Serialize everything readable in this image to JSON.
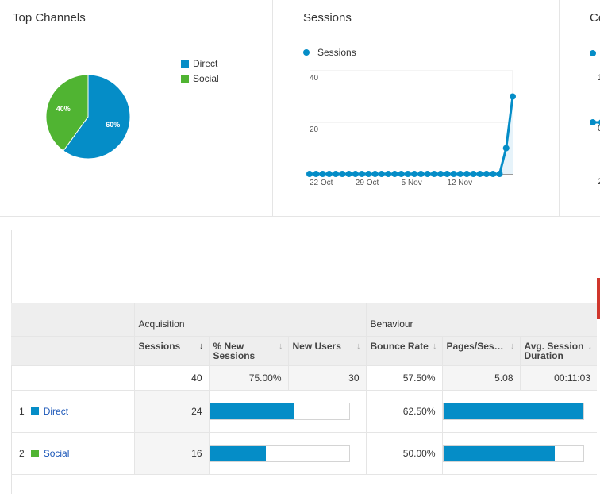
{
  "channels_card": {
    "title": "Top Channels",
    "legend": [
      {
        "label": "Direct",
        "color": "#058dc7"
      },
      {
        "label": "Social",
        "color": "#50b432"
      }
    ]
  },
  "chart_data": [
    {
      "type": "pie",
      "title": "Top Channels",
      "labels": [
        "Direct",
        "Social"
      ],
      "values": [
        60,
        40
      ],
      "colors": [
        "#058dc7",
        "#50b432"
      ],
      "value_labels": [
        "60%",
        "40%"
      ]
    },
    {
      "type": "line",
      "title": "Sessions",
      "series": [
        {
          "name": "Sessions",
          "color": "#058dc7",
          "values": [
            0,
            0,
            0,
            0,
            0,
            0,
            0,
            0,
            0,
            0,
            0,
            0,
            0,
            0,
            0,
            0,
            0,
            0,
            0,
            0,
            0,
            0,
            0,
            0,
            0,
            0,
            0,
            0,
            0,
            0,
            10,
            30
          ]
        }
      ],
      "x_tick_labels": [
        "22 Oct",
        "29 Oct",
        "5 Nov",
        "12 Nov"
      ],
      "x_tick_index": [
        0,
        7,
        14,
        21
      ],
      "y_ticks": [
        20,
        40
      ],
      "ylim": [
        0,
        40
      ],
      "grid": true
    }
  ],
  "sessions_card": {
    "title": "Sessions",
    "legend": "Sessions"
  },
  "third_card": {
    "title_partial": "Co",
    "tick_a": "1",
    "tick_b": "0",
    "tick_c": "2"
  },
  "report": {
    "groups": {
      "acquisition": "Acquisition",
      "behaviour": "Behaviour"
    },
    "columns": {
      "sessions": "Sessions",
      "new_sessions": "% New Sessions",
      "new_users": "New Users",
      "bounce_rate": "Bounce Rate",
      "pages_session": "Pages/Ses…",
      "avg_duration": "Avg. Session Duration"
    },
    "sort_arrow": "↓",
    "inactive_arrow": "↓",
    "totals": {
      "sessions": "40",
      "new_sessions": "75.00%",
      "new_users": "30",
      "bounce_rate": "57.50%",
      "pages_session": "5.08",
      "avg_duration": "00:11:03"
    },
    "rows": [
      {
        "index": "1",
        "name": "Direct",
        "color": "#058dc7",
        "sessions": "24",
        "sessions_bar_pct": 60,
        "bounce_rate": "62.50%",
        "bounce_bar_pct": 100
      },
      {
        "index": "2",
        "name": "Social",
        "color": "#50b432",
        "sessions": "16",
        "sessions_bar_pct": 40,
        "bounce_rate": "50.00%",
        "bounce_bar_pct": 80
      }
    ]
  }
}
